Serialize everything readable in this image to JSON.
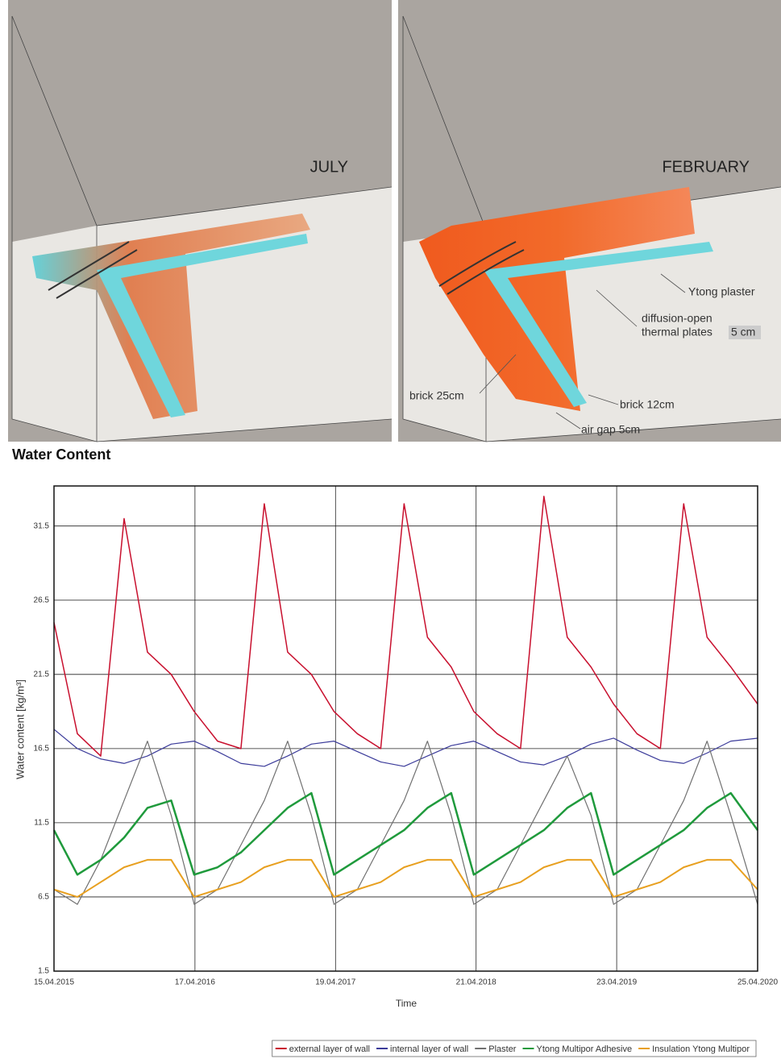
{
  "renders": {
    "panels": [
      {
        "label": "JULY"
      },
      {
        "label": "FEBRUARY"
      }
    ],
    "annotations": {
      "ytong_plaster": "Ytong plaster",
      "plates_line1": "diffusion-open",
      "plates_line2": "thermal plates",
      "plates_thickness": "5 cm",
      "brick_25": "brick 25cm",
      "brick_12": "brick 12cm",
      "air_gap": "air gap 5cm"
    }
  },
  "chart_data": {
    "type": "line",
    "title": "Water Content",
    "x_label": "Time",
    "y_label": "Water content [kg/m³]",
    "x": [
      "15.04.2015",
      "15.06.2015",
      "15.08.2015",
      "15.10.2015",
      "15.12.2015",
      "15.02.2016",
      "15.04.2016",
      "15.06.2016",
      "15.08.2016",
      "15.10.2016",
      "15.12.2016",
      "15.02.2017",
      "15.04.2017",
      "15.06.2017",
      "15.08.2017",
      "15.10.2017",
      "15.12.2017",
      "15.02.2018",
      "15.04.2018",
      "15.06.2018",
      "15.08.2018",
      "15.10.2018",
      "15.12.2018",
      "15.02.2019",
      "15.04.2019",
      "15.06.2019",
      "15.08.2019",
      "15.10.2019",
      "15.12.2019",
      "15.02.2020",
      "25.04.2020"
    ],
    "xlim": [
      "15.04.2015",
      "25.04.2020"
    ],
    "xticks": [
      "15.04.2015",
      "17.04.2016",
      "19.04.2017",
      "21.04.2018",
      "23.04.2019",
      "25.04.2020"
    ],
    "ylim": [
      1.5,
      34.2
    ],
    "yticks": [
      1.5,
      6.5,
      11.5,
      16.5,
      21.5,
      26.5,
      31.5
    ],
    "grid": true,
    "legend": "bottom",
    "series": [
      {
        "name": "external layer of wall",
        "color": "#c8102e",
        "width": 1.5,
        "values": [
          25,
          17.5,
          16,
          32,
          23,
          21.5,
          19,
          17,
          16.5,
          33,
          23,
          21.5,
          19,
          17.5,
          16.5,
          33,
          24,
          22,
          19,
          17.5,
          16.5,
          33.5,
          24,
          22,
          19.5,
          17.5,
          16.5,
          33,
          24,
          22,
          19.5
        ]
      },
      {
        "name": "internal layer of wall",
        "color": "#3b3b9a",
        "width": 1.2,
        "values": [
          17.8,
          16.5,
          15.8,
          15.5,
          16,
          16.8,
          17,
          16.3,
          15.5,
          15.3,
          16,
          16.8,
          17,
          16.3,
          15.6,
          15.3,
          16,
          16.7,
          17,
          16.3,
          15.6,
          15.4,
          16,
          16.8,
          17.2,
          16.4,
          15.7,
          15.5,
          16.2,
          17,
          17.2
        ]
      },
      {
        "name": "Plaster",
        "color": "#707070",
        "width": 1.2,
        "values": [
          7,
          6,
          9,
          13,
          17,
          12,
          6,
          7,
          10,
          13,
          17,
          12,
          6,
          7,
          10,
          13,
          17,
          12,
          6,
          7,
          10,
          13,
          16,
          12,
          6,
          7,
          10,
          13,
          17,
          12,
          6
        ]
      },
      {
        "name": "Ytong Multipor Adhesive",
        "color": "#1f9a3c",
        "width": 2.5,
        "values": [
          11,
          8,
          9,
          10.5,
          12.5,
          13,
          8,
          8.5,
          9.5,
          11,
          12.5,
          13.5,
          8,
          9,
          10,
          11,
          12.5,
          13.5,
          8,
          9,
          10,
          11,
          12.5,
          13.5,
          8,
          9,
          10,
          11,
          12.5,
          13.5,
          11
        ]
      },
      {
        "name": "Insulation Ytong Multipor",
        "color": "#e8a020",
        "width": 2,
        "values": [
          7,
          6.5,
          7.5,
          8.5,
          9,
          9,
          6.5,
          7,
          7.5,
          8.5,
          9,
          9,
          6.5,
          7,
          7.5,
          8.5,
          9,
          9,
          6.5,
          7,
          7.5,
          8.5,
          9,
          9,
          6.5,
          7,
          7.5,
          8.5,
          9,
          9,
          7
        ]
      }
    ]
  }
}
